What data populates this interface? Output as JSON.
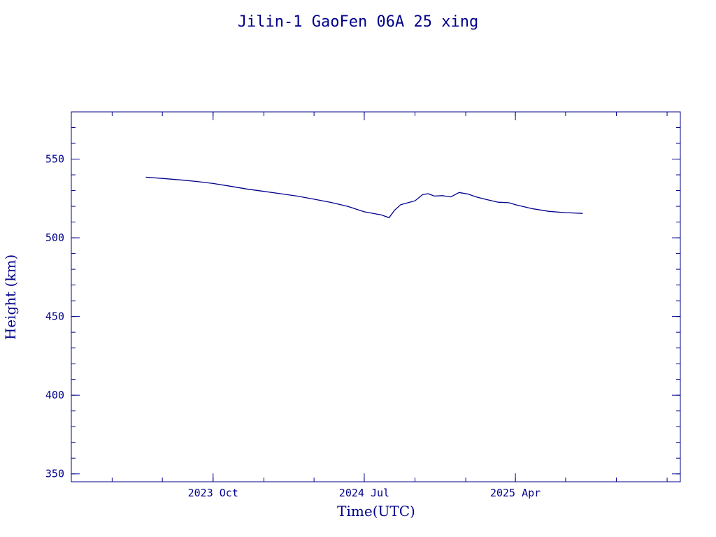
{
  "chart_data": {
    "type": "line",
    "title": "Jilin-1 GaoFen 06A 25 xing",
    "xlabel": "Time(UTC)",
    "ylabel": "Height (km)",
    "xlim": [
      "2023-01-17",
      "2026-01-25"
    ],
    "ylim": [
      345,
      580
    ],
    "x_ticks": [
      {
        "date": "2023-10-01",
        "label": "2023 Oct"
      },
      {
        "date": "2024-07-01",
        "label": "2024 Jul"
      },
      {
        "date": "2025-04-01",
        "label": "2025 Apr"
      }
    ],
    "y_ticks": [
      350,
      400,
      450,
      500,
      550
    ],
    "grid": false,
    "line_color": "#00008b",
    "series": [
      {
        "x": [
          "2023-06-01",
          "2023-07-01",
          "2023-08-01",
          "2023-09-01",
          "2023-10-01",
          "2023-11-01",
          "2023-12-01",
          "2024-01-01",
          "2024-02-01",
          "2024-03-01",
          "2024-04-01",
          "2024-05-01",
          "2024-06-01",
          "2024-07-01",
          "2024-08-01",
          "2024-08-15",
          "2024-08-25",
          "2024-09-05",
          "2024-09-15",
          "2024-10-01",
          "2024-10-15",
          "2024-10-25",
          "2024-11-05",
          "2024-11-20",
          "2024-12-05",
          "2024-12-20",
          "2025-01-05",
          "2025-01-20",
          "2025-02-05",
          "2025-03-01",
          "2025-03-20",
          "2025-04-01",
          "2025-05-01",
          "2025-06-01",
          "2025-07-01",
          "2025-08-01"
        ],
        "y": [
          538.5,
          537.7,
          536.8,
          535.8,
          534.5,
          532.8,
          531.0,
          529.5,
          528.0,
          526.5,
          524.5,
          522.5,
          520.0,
          516.5,
          514.5,
          512.8,
          517.5,
          521.0,
          522.0,
          523.5,
          527.5,
          528.0,
          526.5,
          526.8,
          526.0,
          528.8,
          527.8,
          526.0,
          524.5,
          522.6,
          522.3,
          521.0,
          518.5,
          516.8,
          516.0,
          515.5
        ]
      }
    ]
  }
}
